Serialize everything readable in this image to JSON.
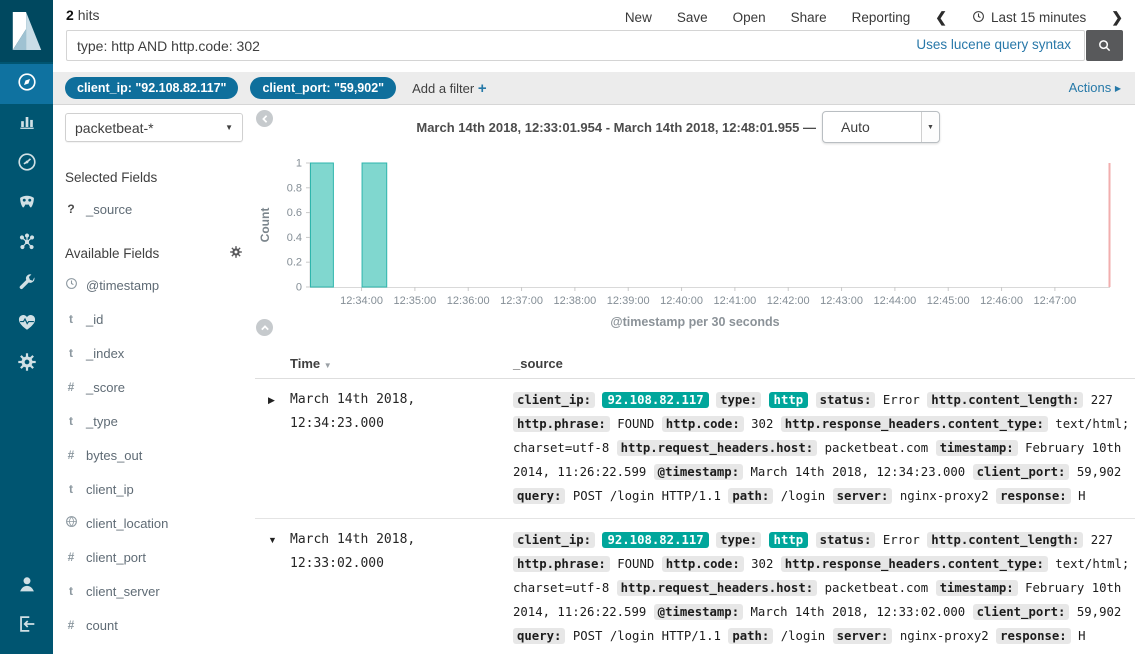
{
  "topbar": {
    "hits_count": "2",
    "hits_label": "hits",
    "menu": [
      "New",
      "Save",
      "Open",
      "Share",
      "Reporting"
    ],
    "time_range_label": "Last 15 minutes"
  },
  "search": {
    "query": "type: http AND http.code: 302",
    "syntax_hint": "Uses lucene query syntax"
  },
  "filter_bar": {
    "pills": [
      "client_ip: \"92.108.82.117\"",
      "client_port: \"59,902\""
    ],
    "add_filter_label": "Add a filter",
    "add_filter_plus": "+",
    "actions_label": "Actions"
  },
  "sidebar": {
    "active_item": "discover",
    "items": [
      "discover",
      "visualize",
      "dashboard",
      "timelion",
      "machine-learning",
      "dev-tools",
      "monitoring",
      "management"
    ],
    "bottom_items": [
      "account",
      "logout"
    ]
  },
  "fields_panel": {
    "index_pattern": "packetbeat-*",
    "selected_heading": "Selected Fields",
    "selected_fields": [
      {
        "type": "?",
        "name": "_source"
      }
    ],
    "available_heading": "Available Fields",
    "available_fields": [
      {
        "type": "clock",
        "name": "@timestamp"
      },
      {
        "type": "t",
        "name": "_id"
      },
      {
        "type": "t",
        "name": "_index"
      },
      {
        "type": "#",
        "name": "_score"
      },
      {
        "type": "t",
        "name": "_type"
      },
      {
        "type": "#",
        "name": "bytes_out"
      },
      {
        "type": "t",
        "name": "client_ip"
      },
      {
        "type": "globe",
        "name": "client_location"
      },
      {
        "type": "#",
        "name": "client_port"
      },
      {
        "type": "t",
        "name": "client_server"
      },
      {
        "type": "#",
        "name": "count"
      }
    ]
  },
  "main": {
    "range_title": "March 14th 2018, 12:33:01.954 - March 14th 2018, 12:48:01.955 —",
    "interval_value": "Auto"
  },
  "chart_data": {
    "type": "bar",
    "title": "March 14th 2018, 12:33:01.954 - March 14th 2018, 12:48:01.955",
    "ylabel": "Count",
    "xlabel": "@timestamp per 30 seconds",
    "ylim": [
      0,
      1
    ],
    "yticks": [
      0,
      0.2,
      0.4,
      0.6,
      0.8,
      1
    ],
    "x_range": {
      "start": "12:33:01.954",
      "end": "12:48:01.955",
      "total_seconds": 900
    },
    "xtick_labels": [
      "12:34:00",
      "12:35:00",
      "12:36:00",
      "12:37:00",
      "12:38:00",
      "12:39:00",
      "12:40:00",
      "12:41:00",
      "12:42:00",
      "12:43:00",
      "12:44:00",
      "12:45:00",
      "12:46:00",
      "12:47:00"
    ],
    "first_tick_offset_seconds": 58,
    "tick_interval_seconds": 60,
    "bucket_seconds": 30,
    "bars": [
      {
        "bucket_start": "12:33:00",
        "offset_seconds": -2,
        "value": 1
      },
      {
        "bucket_start": "12:34:00",
        "offset_seconds": 58,
        "value": 1
      }
    ],
    "colors": {
      "bar_fill": "#80d7cf",
      "bar_border": "#2eb5ac",
      "axis_text": "#848e96",
      "axis_line": "#d9d9d9",
      "now_line": "#f2aeae",
      "label": "#7b858c"
    }
  },
  "table": {
    "columns": [
      "Time",
      "_source"
    ],
    "rows": [
      {
        "expanded": false,
        "time": "March 14th 2018, 12:34:23.000",
        "source": [
          {
            "k": "client_ip:",
            "v": "92.108.82.117",
            "hl": true
          },
          {
            "k": "type:",
            "v": "http",
            "hl": true
          },
          {
            "k": "status:",
            "v": "Error"
          },
          {
            "k": "http.content_length:",
            "v": "227"
          },
          {
            "k": "http.phrase:",
            "v": "FOUND"
          },
          {
            "k": "http.code:",
            "v": "302"
          },
          {
            "k": "http.response_headers.content_type:",
            "v": "text/html; charset=utf-8"
          },
          {
            "k": "http.request_headers.host:",
            "v": "packetbeat.com"
          },
          {
            "k": "timestamp:",
            "v": "February 10th 2014, 11:26:22.599"
          },
          {
            "k": "@timestamp:",
            "v": "March 14th 2018, 12:34:23.000"
          },
          {
            "k": "client_port:",
            "v": "59,902"
          },
          {
            "k": "query:",
            "v": "POST /login HTTP/1.1"
          },
          {
            "k": "path:",
            "v": "/login"
          },
          {
            "k": "server:",
            "v": "nginx-proxy2"
          },
          {
            "k": "response:",
            "v": "H"
          }
        ]
      },
      {
        "expanded": true,
        "time": "March 14th 2018, 12:33:02.000",
        "source": [
          {
            "k": "client_ip:",
            "v": "92.108.82.117",
            "hl": true
          },
          {
            "k": "type:",
            "v": "http",
            "hl": true
          },
          {
            "k": "status:",
            "v": "Error"
          },
          {
            "k": "http.content_length:",
            "v": "227"
          },
          {
            "k": "http.phrase:",
            "v": "FOUND"
          },
          {
            "k": "http.code:",
            "v": "302"
          },
          {
            "k": "http.response_headers.content_type:",
            "v": "text/html; charset=utf-8"
          },
          {
            "k": "http.request_headers.host:",
            "v": "packetbeat.com"
          },
          {
            "k": "timestamp:",
            "v": "February 10th 2014, 11:26:22.599"
          },
          {
            "k": "@timestamp:",
            "v": "March 14th 2018, 12:33:02.000"
          },
          {
            "k": "client_port:",
            "v": "59,902"
          },
          {
            "k": "query:",
            "v": "POST /login HTTP/1.1"
          },
          {
            "k": "path:",
            "v": "/login"
          },
          {
            "k": "server:",
            "v": "nginx-proxy2"
          },
          {
            "k": "response:",
            "v": "H"
          }
        ]
      }
    ]
  }
}
